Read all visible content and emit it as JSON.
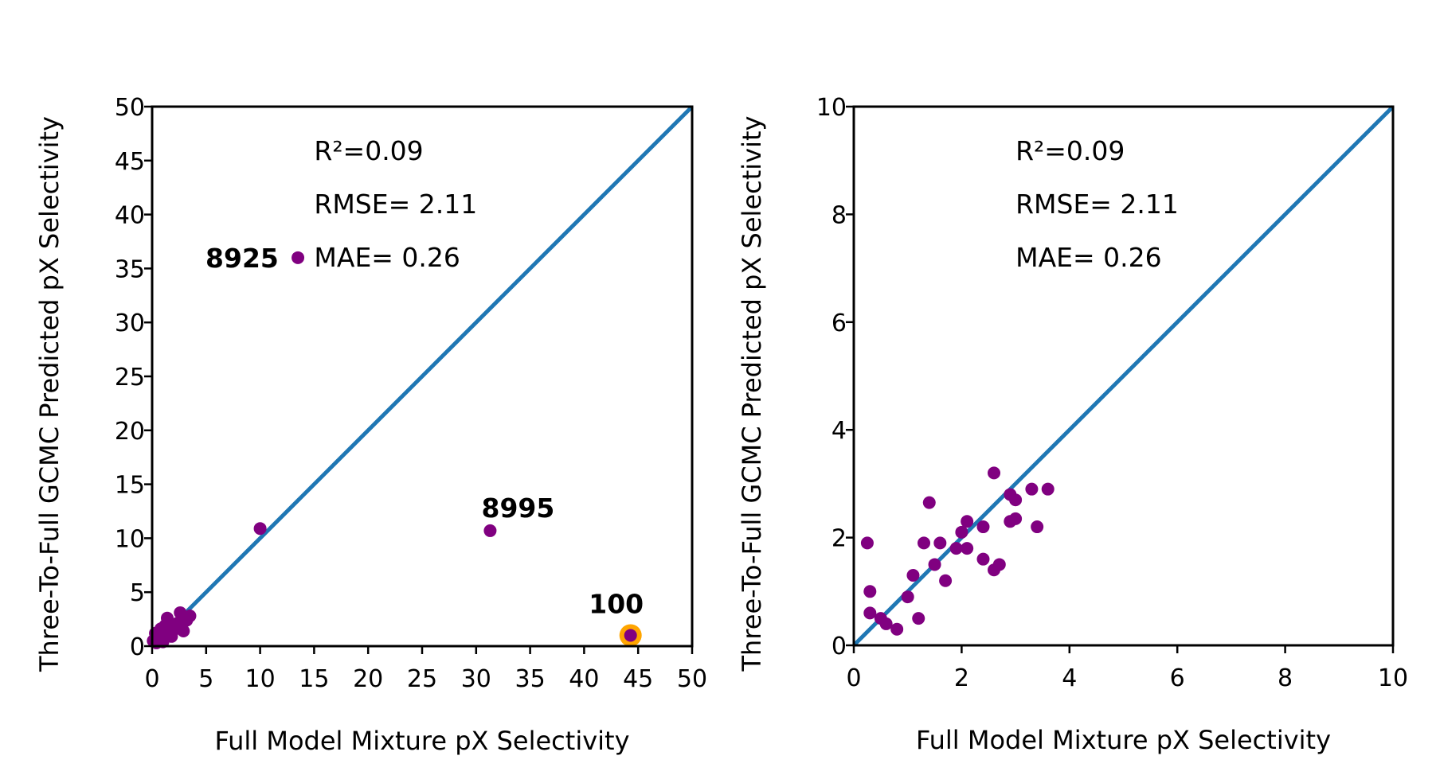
{
  "chart_data": [
    {
      "type": "scatter",
      "xlabel": "Full Model Mixture pX Selectivity",
      "ylabel": "Three-To-Full GCMC Predicted pX Selectivity",
      "xlim": [
        0,
        50
      ],
      "ylim": [
        0,
        50
      ],
      "xticks": [
        "0",
        "5",
        "10",
        "15",
        "20",
        "25",
        "30",
        "35",
        "40",
        "45",
        "50"
      ],
      "yticks": [
        "0",
        "5",
        "10",
        "15",
        "20",
        "25",
        "30",
        "35",
        "40",
        "45",
        "50"
      ],
      "stats": {
        "r2": "R²=0.09",
        "rmse": "RMSE= 2.11",
        "mae": "MAE= 0.26"
      },
      "parity_line": [
        [
          0,
          0
        ],
        [
          50,
          50
        ]
      ],
      "series": [
        {
          "color": "#800080",
          "points": [
            [
              13.5,
              36.0
            ],
            [
              10.0,
              10.9
            ],
            [
              31.3,
              10.7
            ],
            [
              44.3,
              1.0
            ],
            [
              0.1,
              0.5
            ],
            [
              0.3,
              1.2
            ],
            [
              0.5,
              0.8
            ],
            [
              0.8,
              1.6
            ],
            [
              1.0,
              0.4
            ],
            [
              1.2,
              1.9
            ],
            [
              1.4,
              2.6
            ],
            [
              1.6,
              1.1
            ],
            [
              2.0,
              1.5
            ],
            [
              2.3,
              2.1
            ],
            [
              2.6,
              3.1
            ],
            [
              2.9,
              1.4
            ],
            [
              3.2,
              2.4
            ],
            [
              3.5,
              2.8
            ],
            [
              0.4,
              0.3
            ],
            [
              1.8,
              0.9
            ]
          ]
        }
      ],
      "annotations": [
        {
          "text": "8925",
          "x": 13.5,
          "y": 36.0
        },
        {
          "text": "8995",
          "x": 31.3,
          "y": 10.7
        },
        {
          "text": "100",
          "x": 44.3,
          "y": 1.0,
          "highlight": "#FFA500"
        }
      ],
      "grid": false
    },
    {
      "type": "scatter",
      "xlabel": "Full Model Mixture pX Selectivity",
      "ylabel": "Three-To-Full GCMC Predicted pX Selectivity",
      "xlim": [
        0,
        10
      ],
      "ylim": [
        0,
        10
      ],
      "xticks": [
        "0",
        "2",
        "4",
        "6",
        "8",
        "10"
      ],
      "yticks": [
        "0",
        "2",
        "4",
        "6",
        "8",
        "10"
      ],
      "stats": {
        "r2": "R²=0.09",
        "rmse": "RMSE= 2.11",
        "mae": "MAE= 0.26"
      },
      "parity_line": [
        [
          0,
          0
        ],
        [
          10,
          10
        ]
      ],
      "series": [
        {
          "color": "#800080",
          "points": [
            [
              2.6,
              3.2
            ],
            [
              3.3,
              2.9
            ],
            [
              3.6,
              2.9
            ],
            [
              2.9,
              2.8
            ],
            [
              3.0,
              2.7
            ],
            [
              3.4,
              2.2
            ],
            [
              2.9,
              2.3
            ],
            [
              3.0,
              2.35
            ],
            [
              1.4,
              2.65
            ],
            [
              0.25,
              1.9
            ],
            [
              2.4,
              2.2
            ],
            [
              2.1,
              2.3
            ],
            [
              2.0,
              2.1
            ],
            [
              2.1,
              1.8
            ],
            [
              1.9,
              1.8
            ],
            [
              2.4,
              1.6
            ],
            [
              2.7,
              1.5
            ],
            [
              2.6,
              1.4
            ],
            [
              1.7,
              1.2
            ],
            [
              1.6,
              1.9
            ],
            [
              1.3,
              1.9
            ],
            [
              0.3,
              1.0
            ],
            [
              0.3,
              0.6
            ],
            [
              0.5,
              0.5
            ],
            [
              0.6,
              0.4
            ],
            [
              0.8,
              0.3
            ],
            [
              1.0,
              0.9
            ],
            [
              1.2,
              0.5
            ],
            [
              1.5,
              1.5
            ],
            [
              1.1,
              1.3
            ]
          ]
        }
      ],
      "grid": false
    }
  ]
}
